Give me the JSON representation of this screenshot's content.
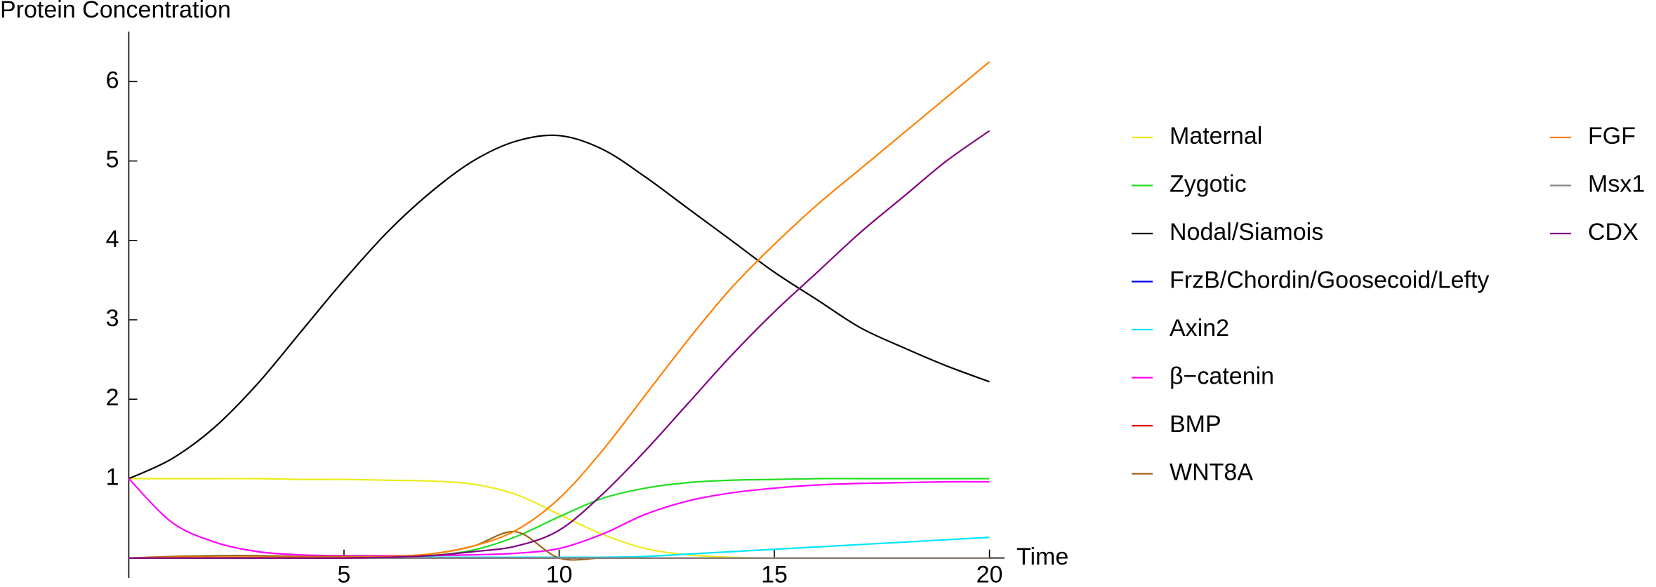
{
  "chart_data": {
    "type": "line",
    "ylabel": "Protein Concentration",
    "xlabel": "Time",
    "x": [
      0,
      1,
      2,
      3,
      4,
      5,
      6,
      7,
      8,
      9,
      10,
      11,
      12,
      13,
      14,
      15,
      16,
      17,
      18,
      19,
      20
    ],
    "xlim": [
      0,
      20.35
    ],
    "ylim": [
      -0.25,
      6.63
    ],
    "xticks": [
      5,
      10,
      15,
      20
    ],
    "yticks": [
      1,
      2,
      3,
      4,
      5,
      6
    ],
    "series": [
      {
        "name": "Maternal",
        "color": "#ecec1e",
        "values": [
          1,
          1,
          1,
          1,
          0.99,
          0.99,
          0.98,
          0.97,
          0.93,
          0.8,
          0.55,
          0.3,
          0.12,
          0.04,
          0.01,
          0,
          0,
          0,
          0,
          0,
          0
        ]
      },
      {
        "name": "Zygotic",
        "color": "#22dd22",
        "values": [
          0,
          0.01,
          0.01,
          0.01,
          0.01,
          0.01,
          0.01,
          0.03,
          0.1,
          0.27,
          0.52,
          0.75,
          0.88,
          0.95,
          0.98,
          0.99,
          1,
          1,
          1,
          1,
          1
        ]
      },
      {
        "name": "Nodal/Siamois",
        "color": "#000000",
        "values": [
          1,
          1.25,
          1.65,
          2.2,
          2.85,
          3.5,
          4.1,
          4.6,
          5.0,
          5.25,
          5.32,
          5.15,
          4.8,
          4.4,
          4.0,
          3.6,
          3.25,
          2.9,
          2.65,
          2.42,
          2.22
        ]
      },
      {
        "name": "FrzB/Chordin/Goosecoid/Lefty",
        "color": "#0000ee",
        "values": [
          0,
          0,
          0,
          0,
          0,
          0,
          0,
          0,
          0,
          0,
          0,
          0,
          0,
          0,
          0,
          0,
          0,
          0,
          0,
          0,
          0
        ]
      },
      {
        "name": "Axin2",
        "color": "#00e5ff",
        "values": [
          0,
          0.01,
          0.01,
          0.01,
          0.01,
          0.01,
          0.01,
          0.01,
          0.01,
          0.01,
          0.01,
          0.01,
          0.02,
          0.05,
          0.08,
          0.11,
          0.14,
          0.17,
          0.2,
          0.23,
          0.26
        ]
      },
      {
        "name": "β−catenin",
        "color": "#ff00ff",
        "values": [
          1,
          0.45,
          0.2,
          0.08,
          0.04,
          0.03,
          0.03,
          0.03,
          0.04,
          0.06,
          0.12,
          0.3,
          0.55,
          0.72,
          0.82,
          0.88,
          0.92,
          0.94,
          0.95,
          0.96,
          0.96
        ]
      },
      {
        "name": "BMP",
        "color": "#dd1111",
        "values": [
          0,
          0,
          0,
          0,
          0,
          0,
          0,
          0,
          0,
          0,
          0,
          0,
          0,
          0,
          0,
          0,
          0,
          0,
          0,
          0,
          0
        ]
      },
      {
        "name": "WNT8A",
        "color": "#9c6418",
        "values": [
          0,
          0.02,
          0.03,
          0.03,
          0.02,
          0.02,
          0.02,
          0.05,
          0.15,
          0.33,
          0,
          0,
          0,
          0,
          0,
          0,
          0,
          0,
          0,
          0,
          0
        ]
      },
      {
        "name": "FGF",
        "color": "#ff8000",
        "values": [
          0,
          0.01,
          0.01,
          0.01,
          0.01,
          0.01,
          0.02,
          0.05,
          0.15,
          0.35,
          0.75,
          1.35,
          2.05,
          2.75,
          3.4,
          3.95,
          4.45,
          4.9,
          5.35,
          5.8,
          6.25
        ]
      },
      {
        "name": "Msx1",
        "color": "#888888",
        "values": [
          0,
          0,
          0,
          0,
          0,
          0,
          0,
          0,
          0,
          0,
          0,
          0,
          0,
          0,
          0,
          0,
          0,
          0,
          0,
          0,
          0
        ]
      },
      {
        "name": "CDX",
        "color": "#800080",
        "values": [
          0,
          0,
          0,
          0,
          0,
          0,
          0.01,
          0.03,
          0.08,
          0.15,
          0.35,
          0.8,
          1.35,
          1.95,
          2.55,
          3.1,
          3.6,
          4.1,
          4.55,
          5.0,
          5.38
        ]
      }
    ]
  }
}
